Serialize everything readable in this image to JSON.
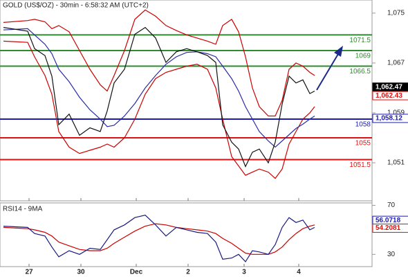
{
  "chart_data": [
    {
      "type": "line",
      "title": "GOLD (US$/OZ) - 30min - 6:58:32 AM (UTC+2)",
      "x": [
        1,
        8,
        10,
        13,
        15,
        17,
        20,
        23,
        26,
        29,
        31,
        33,
        36,
        39,
        42,
        45,
        48,
        51,
        54,
        57,
        60,
        62.4,
        64.4,
        67,
        69,
        71,
        73,
        75,
        77.6,
        79.6,
        81.6,
        83.6,
        85.6,
        87.6,
        89.6,
        91
      ],
      "xlim": [
        0,
        107.6
      ],
      "ylim": [
        1044.9,
        1077.1
      ],
      "yticks": [
        {
          "value": 1051,
          "label": "1,051"
        },
        {
          "value": 1059,
          "label": "1,059"
        },
        {
          "value": 1067,
          "label": "1,067"
        },
        {
          "value": 1075,
          "label": "1,075"
        }
      ],
      "series": [
        {
          "color": "#cc0000",
          "values": [
            1073.5,
            1073.8,
            1074,
            1073.6,
            1072.5,
            1073,
            1072,
            1069,
            1066,
            1063.5,
            1062.5,
            1065,
            1069,
            1074,
            1075.5,
            1074.5,
            1073,
            1072.2,
            1071.5,
            1071,
            1070.5,
            1070,
            1073,
            1074,
            1072,
            1068,
            1063,
            1060,
            1058.5,
            1058.5,
            1061,
            1066,
            1067,
            1066.5,
            1065.5,
            1065
          ]
        },
        {
          "color": "#cc0000",
          "values": [
            1070.5,
            1070.3,
            1068,
            1065,
            1062,
            1056,
            1053.5,
            1052.5,
            1053,
            1053.5,
            1054,
            1053.5,
            1055,
            1058,
            1062,
            1064.5,
            1065.5,
            1066,
            1066.5,
            1066.8,
            1066,
            1063,
            1058,
            1052,
            1050.5,
            1049,
            1049.5,
            1050,
            1049.5,
            1048.5,
            1050,
            1054,
            1056,
            1058,
            1059,
            1060
          ]
        },
        {
          "color": "#2a2aa8",
          "values": [
            1072.3,
            1072.5,
            1071.5,
            1070,
            1068.5,
            1066,
            1064,
            1061.5,
            1059.5,
            1058,
            1056.8,
            1057,
            1058.5,
            1060.5,
            1063,
            1065,
            1066.8,
            1068,
            1068.7,
            1068.8,
            1068.5,
            1068,
            1066.5,
            1064.5,
            1062.5,
            1060,
            1058,
            1056,
            1054.5,
            1053.5,
            1054.5,
            1055.5,
            1056.5,
            1057.2,
            1058,
            1058.5
          ]
        },
        {
          "color": "#111111",
          "values": [
            1072.7,
            1072.1,
            1069.3,
            1068.2,
            1064.9,
            1057.1,
            1058.8,
            1055.4,
            1056.6,
            1056,
            1059.3,
            1063.8,
            1066,
            1071.6,
            1072.7,
            1071,
            1067.1,
            1068.8,
            1069.3,
            1068.8,
            1068.2,
            1067.1,
            1057.1,
            1054.3,
            1053.2,
            1050.4,
            1052.7,
            1053.2,
            1051,
            1054.3,
            1060.4,
            1064.9,
            1063.8,
            1064.3,
            1062.1,
            1062.5
          ]
        }
      ],
      "levels": [
        {
          "value": 1071.5,
          "color": "#2e8b2e"
        },
        {
          "value": 1069,
          "color": "#2e8b2e"
        },
        {
          "value": 1066.5,
          "color": "#2e8b2e"
        },
        {
          "value": 1058,
          "color": "#1c1cb0"
        },
        {
          "value": 1055,
          "color": "#dd1111"
        },
        {
          "value": 1051.5,
          "color": "#dd1111"
        }
      ],
      "markers": [
        {
          "value": 1062.47,
          "label": "1,062.47",
          "color": "#000000"
        },
        {
          "value": 1062.43,
          "label": "1,062.43",
          "color": "#dd1111"
        },
        {
          "value": 1058.12,
          "label": "1,058.12",
          "color": "#1c1cb0"
        }
      ]
    },
    {
      "type": "line",
      "title": "RSI14 - 9MA",
      "x": [
        1,
        8,
        10,
        13,
        15,
        17,
        20,
        23,
        26,
        29,
        31,
        33,
        36,
        39,
        42,
        45,
        48,
        51,
        54,
        57,
        60,
        62.4,
        64.4,
        67,
        69,
        71,
        73,
        75,
        77.6,
        79.6,
        81.6,
        83.6,
        85.6,
        87.6,
        89.6,
        91
      ],
      "xlim": [
        0,
        107.6
      ],
      "ylim": [
        20,
        72
      ],
      "yticks": [
        30,
        50,
        70
      ],
      "xticks": [
        {
          "value": 8.4,
          "label": "27"
        },
        {
          "value": 23.4,
          "label": "30"
        },
        {
          "value": 39.4,
          "label": "Dec"
        },
        {
          "value": 54.4,
          "label": "2"
        },
        {
          "value": 70.6,
          "label": "3"
        },
        {
          "value": 86.4,
          "label": "4"
        }
      ],
      "series": [
        {
          "color": "#cc0000",
          "values": [
            52,
            51,
            50,
            48,
            45,
            40,
            37,
            34,
            33,
            33,
            35,
            39,
            44,
            49,
            53,
            55,
            54,
            52,
            51,
            50,
            49,
            47,
            43,
            39,
            35,
            31,
            30,
            30,
            30,
            32,
            36,
            42,
            47,
            51,
            53,
            54
          ]
        },
        {
          "color": "#1a1a80",
          "values": [
            53,
            52,
            47,
            45,
            36,
            28,
            33,
            30,
            35,
            34,
            42,
            50,
            54,
            60,
            62,
            54,
            45,
            52,
            50,
            48,
            47,
            40,
            26,
            27,
            30,
            24,
            33,
            32,
            30,
            38,
            52,
            60,
            56,
            58,
            50,
            52
          ]
        }
      ],
      "markers": [
        {
          "value": 56.0718,
          "color": "#1c1cb0"
        },
        {
          "value": 54.2081,
          "color": "#dd1111"
        }
      ]
    }
  ]
}
